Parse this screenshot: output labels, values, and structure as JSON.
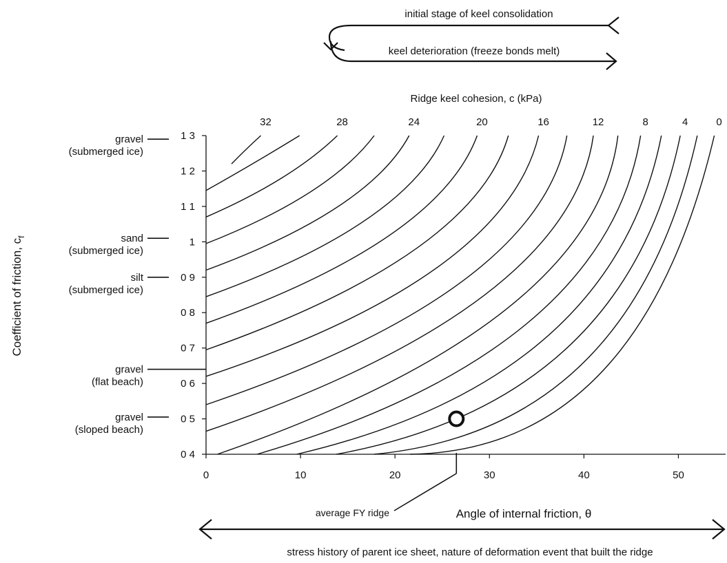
{
  "chart_data": {
    "type": "line",
    "title": "",
    "xlabel": "Angle of internal friction, θ",
    "ylabel": "Coefficient of friction, c",
    "ylabel_subscript": "f",
    "xlim": [
      0,
      55
    ],
    "ylim": [
      0.4,
      1.3
    ],
    "x_ticks": [
      "0",
      "10",
      "20",
      "30",
      "40",
      "50"
    ],
    "y_ticks": [
      "0 4",
      "0 5",
      "0 6",
      "0 7",
      "0 8",
      "0 9",
      "1",
      "1 1",
      "1 2",
      "1 3"
    ],
    "top_axis_label": "Ridge keel cohesion, c (kPa)",
    "top_ticks": [
      "32",
      "28",
      "24",
      "20",
      "16",
      "12",
      "8",
      "4",
      "0"
    ],
    "series": [
      {
        "values_x": [
          2.7,
          4.2,
          5.8
        ],
        "values_y": [
          1.22,
          1.26,
          1.3
        ]
      },
      {
        "values_x": [
          0.0,
          4.9,
          9.9
        ],
        "values_y": [
          1.145,
          1.22,
          1.3
        ]
      },
      {
        "values_x": [
          0.0,
          8.0,
          13.9
        ],
        "values_y": [
          1.07,
          1.18,
          1.3
        ]
      },
      {
        "values_x": [
          0.0,
          11.0,
          17.8
        ],
        "values_y": [
          0.995,
          1.14,
          1.3
        ]
      },
      {
        "values_x": [
          0.0,
          14.0,
          21.5
        ],
        "values_y": [
          0.92,
          1.1,
          1.3
        ]
      },
      {
        "values_x": [
          0.0,
          16.8,
          25.2
        ],
        "values_y": [
          0.845,
          1.06,
          1.3
        ]
      },
      {
        "values_x": [
          0.0,
          19.5,
          28.7
        ],
        "values_y": [
          0.77,
          1.02,
          1.3
        ]
      },
      {
        "values_x": [
          0.0,
          22.2,
          32.0
        ],
        "values_y": [
          0.695,
          0.98,
          1.3
        ]
      },
      {
        "values_x": [
          0.0,
          24.6,
          35.2
        ],
        "values_y": [
          0.62,
          0.93,
          1.3
        ]
      },
      {
        "values_x": [
          0.0,
          27.2,
          38.2
        ],
        "values_y": [
          0.54,
          0.89,
          1.3
        ]
      },
      {
        "values_x": [
          0.0,
          29.5,
          41.0
        ],
        "values_y": [
          0.465,
          0.85,
          1.3
        ]
      },
      {
        "values_x": [
          1.2,
          31.8,
          43.6
        ],
        "values_y": [
          0.4,
          0.81,
          1.3
        ]
      },
      {
        "values_x": [
          5.4,
          34.0,
          46.0
        ],
        "values_y": [
          0.4,
          0.77,
          1.3
        ]
      },
      {
        "values_x": [
          9.6,
          36.0,
          48.2
        ],
        "values_y": [
          0.4,
          0.73,
          1.3
        ]
      },
      {
        "values_x": [
          13.8,
          38.2,
          50.2
        ],
        "values_y": [
          0.4,
          0.7,
          1.3
        ]
      },
      {
        "values_x": [
          17.8,
          40.0,
          52.0
        ],
        "values_y": [
          0.4,
          0.66,
          1.3
        ]
      },
      {
        "values_x": [
          21.6,
          41.8,
          53.8
        ],
        "values_y": [
          0.4,
          0.63,
          1.3
        ]
      }
    ],
    "point": {
      "x": 26.5,
      "y": 0.5
    },
    "point_label": "average FY ridge",
    "y_annotations": [
      {
        "line1": "gravel",
        "line2": "(submerged ice)",
        "y": 1.29
      },
      {
        "line1": "sand",
        "line2": "(submerged ice)",
        "y": 1.01
      },
      {
        "line1": "silt",
        "line2": "(submerged ice)",
        "y": 0.9
      },
      {
        "line1": "gravel",
        "line2": "(flat beach)",
        "y": 0.64
      },
      {
        "line1": "gravel",
        "line2": "(sloped beach)",
        "y": 0.505
      }
    ],
    "top_arrow_labels": {
      "consolidation": "initial stage of keel consolidation",
      "deterioration": "keel deterioration (freeze bonds melt)"
    },
    "bottom_arrow_label": "stress history of parent ice sheet, nature of deformation event that built the ridge",
    "grid": false,
    "legend": "none"
  }
}
